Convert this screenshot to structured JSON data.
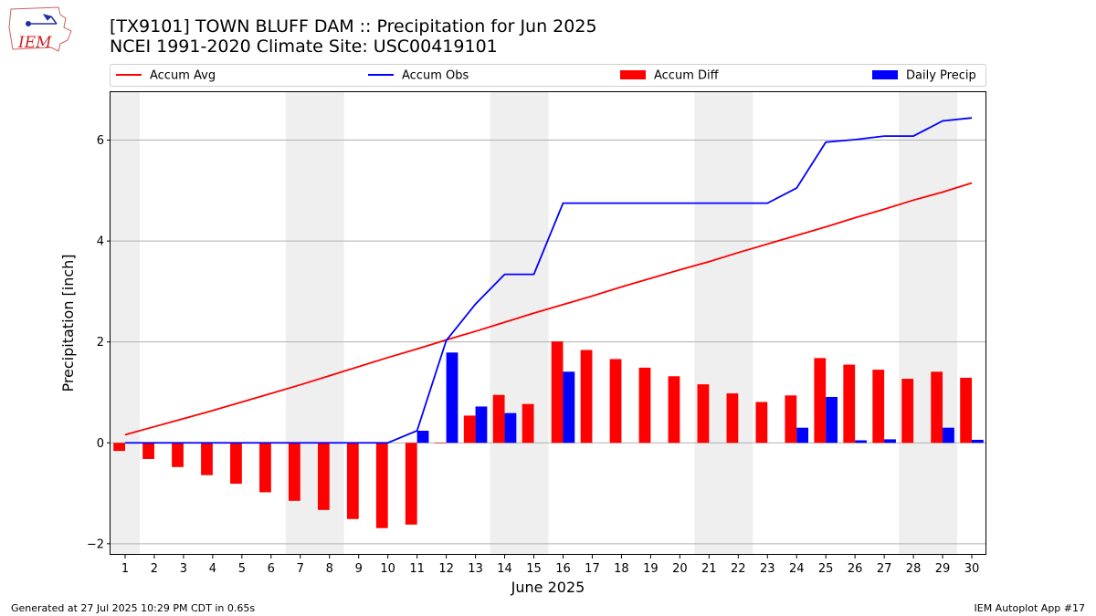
{
  "title_line1": "[TX9101] TOWN BLUFF DAM :: Precipitation for Jun 2025",
  "title_line2": "NCEI 1991-2020 Climate Site: USC00419101",
  "logo_text": "IEM",
  "footer_left": "Generated at 27 Jul 2025 10:29 PM CDT in 0.65s",
  "footer_right": "IEM Autoplot App #17",
  "colors": {
    "avg": "#ff0000",
    "obs": "#0000ff",
    "diff": "#ff0000",
    "daily": "#0000ff",
    "weekend": "#efefef",
    "grid": "#b0b0b0"
  },
  "chart_data": {
    "type": "bar",
    "xlabel": "June 2025",
    "ylabel": "Precipitation [inch]",
    "ylim": [
      -2.22,
      6.95
    ],
    "xlim": [
      0.5,
      30.5
    ],
    "yticks": [
      -2,
      0,
      2,
      4,
      6
    ],
    "days": [
      1,
      2,
      3,
      4,
      5,
      6,
      7,
      8,
      9,
      10,
      11,
      12,
      13,
      14,
      15,
      16,
      17,
      18,
      19,
      20,
      21,
      22,
      23,
      24,
      25,
      26,
      27,
      28,
      29,
      30
    ],
    "weekend_shading": [
      [
        0.5,
        1.5
      ],
      [
        6.5,
        8.5
      ],
      [
        13.5,
        15.5
      ],
      [
        20.5,
        22.5
      ],
      [
        27.5,
        29.5
      ]
    ],
    "grid": "horizontal",
    "legend": {
      "placement": "top",
      "ncol": 4
    },
    "series": [
      {
        "name": "Accum Avg",
        "kind": "line",
        "values": [
          0.16,
          0.32,
          0.48,
          0.64,
          0.81,
          0.98,
          1.15,
          1.33,
          1.51,
          1.69,
          1.86,
          2.04,
          2.21,
          2.39,
          2.57,
          2.74,
          2.91,
          3.09,
          3.26,
          3.43,
          3.59,
          3.77,
          3.94,
          4.11,
          4.28,
          4.46,
          4.63,
          4.81,
          4.97,
          5.15
        ]
      },
      {
        "name": "Accum Obs",
        "kind": "line",
        "values": [
          0,
          0,
          0,
          0,
          0,
          0,
          0,
          0,
          0,
          0,
          0.24,
          2.03,
          2.75,
          3.34,
          3.34,
          4.75,
          4.75,
          4.75,
          4.75,
          4.75,
          4.75,
          4.75,
          4.75,
          5.05,
          5.96,
          6.01,
          6.08,
          6.08,
          6.38,
          6.44
        ]
      },
      {
        "name": "Accum Diff",
        "kind": "bar",
        "values": [
          -0.16,
          -0.32,
          -0.48,
          -0.64,
          -0.81,
          -0.98,
          -1.15,
          -1.33,
          -1.51,
          -1.69,
          -1.62,
          -0.01,
          0.54,
          0.95,
          0.77,
          2.01,
          1.84,
          1.66,
          1.49,
          1.32,
          1.16,
          0.98,
          0.81,
          0.94,
          1.68,
          1.55,
          1.45,
          1.27,
          1.41,
          1.29
        ]
      },
      {
        "name": "Daily Precip",
        "kind": "bar",
        "values": [
          0,
          0,
          0,
          0,
          0,
          0,
          0,
          0,
          0,
          0,
          0.24,
          1.79,
          0.72,
          0.59,
          0,
          1.41,
          0,
          0,
          0,
          0,
          0,
          0,
          0,
          0.3,
          0.91,
          0.05,
          0.07,
          0,
          0.3,
          0.06
        ]
      }
    ]
  }
}
